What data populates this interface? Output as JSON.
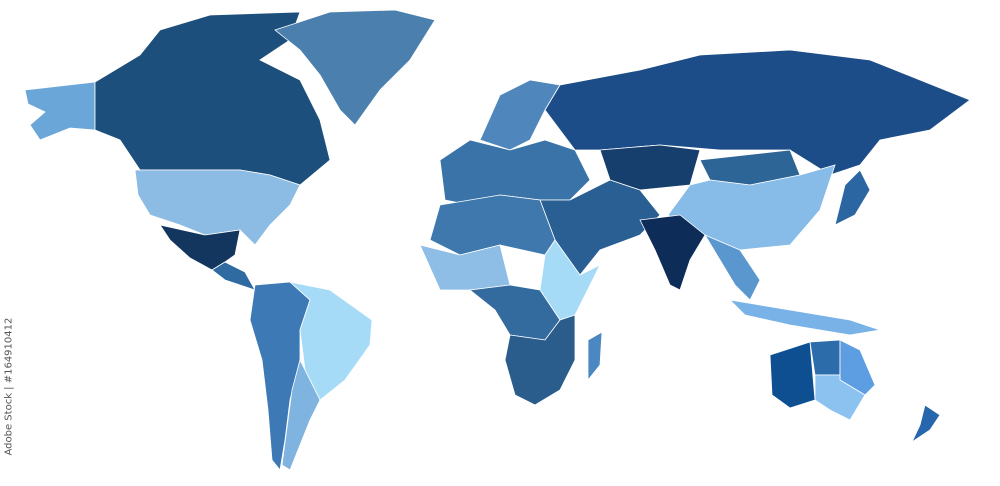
{
  "credit": "Adobe Stock | #164910412",
  "watermark": "Adobe Stock",
  "colors": {
    "canada": "#1d4f7c",
    "alaska": "#6aa6d8",
    "usa": "#8cbbe4",
    "mexico": "#12365e",
    "central_america": "#2f6aa0",
    "greenland": "#4a7fae",
    "south_america_west": "#3d7ab5",
    "brazil": "#a6dbf7",
    "argentina": "#7fb3e0",
    "europe": "#3a73a8",
    "scandinavia": "#4f86bb",
    "russia": "#1c4d88",
    "kazakhstan": "#173f6e",
    "middle_east": "#2a5f94",
    "china": "#87bbe8",
    "mongolia": "#2d6596",
    "india": "#0d2c57",
    "southeast_asia": "#5b97cf",
    "indonesia": "#78b2e6",
    "japan": "#2b66a3",
    "north_africa": "#3f78ad",
    "west_africa": "#8ebde6",
    "central_africa": "#336b9f",
    "east_africa": "#a6dbf7",
    "southern_africa": "#2a5c8c",
    "madagascar": "#4b87c0",
    "australia_west": "#0e4f92",
    "australia_north": "#2d6cab",
    "australia_east": "#5d9de2",
    "australia_south": "#8cc2f0",
    "new_zealand": "#2566ad"
  }
}
